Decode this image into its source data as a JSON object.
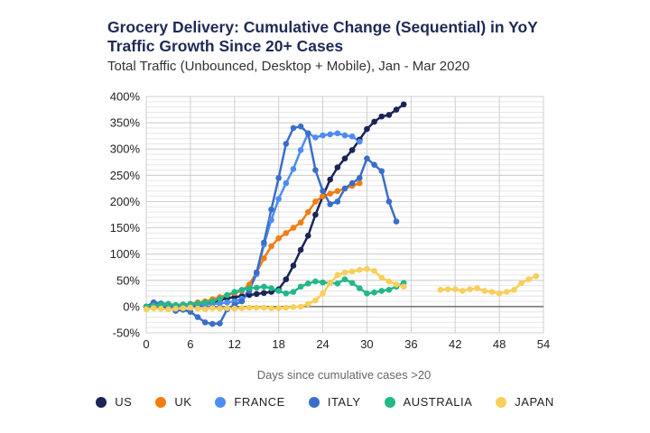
{
  "chart_data": {
    "type": "line",
    "title": "Grocery Delivery: Cumulative Change (Sequential) in YoY\nTraffic Growth Since 20+ Cases",
    "subtitle": "Total Traffic (Unbounced, Desktop + Mobile), Jan - Mar 2020",
    "xlabel": "Days since cumulative cases >20",
    "ylabel": "",
    "xlim": [
      0,
      54
    ],
    "ylim": [
      -50,
      400
    ],
    "xticks": [
      0,
      6,
      12,
      18,
      24,
      30,
      36,
      42,
      48,
      54
    ],
    "yticks": [
      -50,
      0,
      50,
      100,
      150,
      200,
      250,
      300,
      350,
      400
    ],
    "ytick_labels": [
      "-50%",
      "0%",
      "50%",
      "100%",
      "150%",
      "200%",
      "250%",
      "300%",
      "350%",
      "400%"
    ],
    "series": [
      {
        "name": "US",
        "color": "#1a2456",
        "x": [
          0,
          1,
          2,
          3,
          4,
          5,
          6,
          7,
          8,
          9,
          10,
          11,
          12,
          13,
          14,
          15,
          16,
          17,
          18,
          19,
          20,
          21,
          22,
          23,
          24,
          25,
          26,
          27,
          28,
          29,
          30,
          31,
          32,
          33,
          34,
          35
        ],
        "y": [
          0,
          -1,
          -2,
          -3,
          -2,
          -1,
          0,
          2,
          5,
          8,
          12,
          16,
          18,
          20,
          22,
          24,
          26,
          28,
          33,
          52,
          78,
          108,
          135,
          175,
          210,
          242,
          265,
          282,
          298,
          318,
          338,
          352,
          362,
          365,
          375,
          385
        ]
      },
      {
        "name": "UK",
        "color": "#f37d12",
        "x": [
          0,
          1,
          2,
          3,
          4,
          5,
          6,
          7,
          8,
          9,
          10,
          11,
          12,
          13,
          14,
          15,
          16,
          17,
          18,
          19,
          20,
          21,
          22,
          23,
          24,
          25,
          26,
          27,
          28,
          29
        ],
        "y": [
          0,
          2,
          1,
          2,
          3,
          4,
          5,
          8,
          10,
          14,
          18,
          22,
          26,
          30,
          42,
          65,
          92,
          115,
          130,
          140,
          150,
          160,
          180,
          200,
          210,
          215,
          220,
          225,
          230,
          235
        ]
      },
      {
        "name": "FRANCE",
        "color": "#4e8cf3",
        "x": [
          0,
          1,
          2,
          3,
          4,
          5,
          6,
          7,
          8,
          9,
          10,
          11,
          12,
          13,
          14,
          15,
          16,
          17,
          18,
          19,
          20,
          21,
          22,
          23,
          24,
          25,
          26,
          27,
          28,
          29
        ],
        "y": [
          0,
          3,
          2,
          1,
          0,
          1,
          2,
          3,
          4,
          5,
          6,
          8,
          10,
          15,
          32,
          62,
          118,
          165,
          205,
          235,
          262,
          298,
          330,
          322,
          326,
          328,
          330,
          326,
          324,
          314
        ]
      },
      {
        "name": "ITALY",
        "color": "#3a6ec9",
        "x": [
          0,
          1,
          2,
          3,
          4,
          5,
          6,
          7,
          8,
          9,
          10,
          11,
          12,
          13,
          14,
          15,
          16,
          17,
          18,
          19,
          20,
          21,
          22,
          23,
          24,
          25,
          26,
          27,
          28,
          29,
          30,
          31,
          32,
          33,
          34
        ],
        "y": [
          0,
          8,
          6,
          5,
          -8,
          -6,
          -10,
          -20,
          -30,
          -33,
          -32,
          -5,
          3,
          10,
          30,
          65,
          122,
          185,
          245,
          310,
          340,
          343,
          330,
          260,
          220,
          195,
          200,
          225,
          235,
          245,
          282,
          270,
          258,
          200,
          162
        ]
      },
      {
        "name": "AUSTRALIA",
        "color": "#22b889",
        "x": [
          0,
          1,
          2,
          3,
          4,
          5,
          6,
          7,
          8,
          9,
          10,
          11,
          12,
          13,
          14,
          15,
          16,
          17,
          18,
          19,
          20,
          21,
          22,
          23,
          24,
          25,
          26,
          27,
          28,
          29,
          30,
          31,
          32,
          33,
          34,
          35
        ],
        "y": [
          0,
          2,
          4,
          5,
          3,
          4,
          5,
          6,
          8,
          10,
          15,
          22,
          28,
          32,
          35,
          36,
          38,
          35,
          30,
          25,
          28,
          38,
          44,
          48,
          46,
          45,
          44,
          52,
          45,
          35,
          25,
          27,
          30,
          32,
          38,
          45
        ]
      },
      {
        "name": "JAPAN",
        "color": "#f8cf5a",
        "x": [
          0,
          1,
          2,
          3,
          4,
          5,
          6,
          7,
          8,
          9,
          10,
          11,
          12,
          13,
          14,
          15,
          16,
          17,
          18,
          19,
          20,
          21,
          22,
          23,
          24,
          25,
          26,
          27,
          28,
          29,
          30,
          31,
          32,
          33,
          34,
          35,
          40,
          41,
          42,
          43,
          44,
          45,
          46,
          47,
          48,
          49,
          50,
          51,
          52,
          53
        ],
        "y": [
          -5,
          -3,
          -4,
          -5,
          -4,
          -3,
          -2,
          -4,
          -5,
          -3,
          -4,
          -3,
          -4,
          -3,
          -2,
          -2,
          -2,
          -3,
          -3,
          -2,
          -1,
          0,
          5,
          12,
          25,
          45,
          60,
          65,
          67,
          70,
          72,
          68,
          55,
          48,
          42,
          38,
          32,
          33,
          33,
          30,
          33,
          35,
          30,
          28,
          25,
          28,
          32,
          45,
          52,
          58
        ]
      }
    ]
  }
}
